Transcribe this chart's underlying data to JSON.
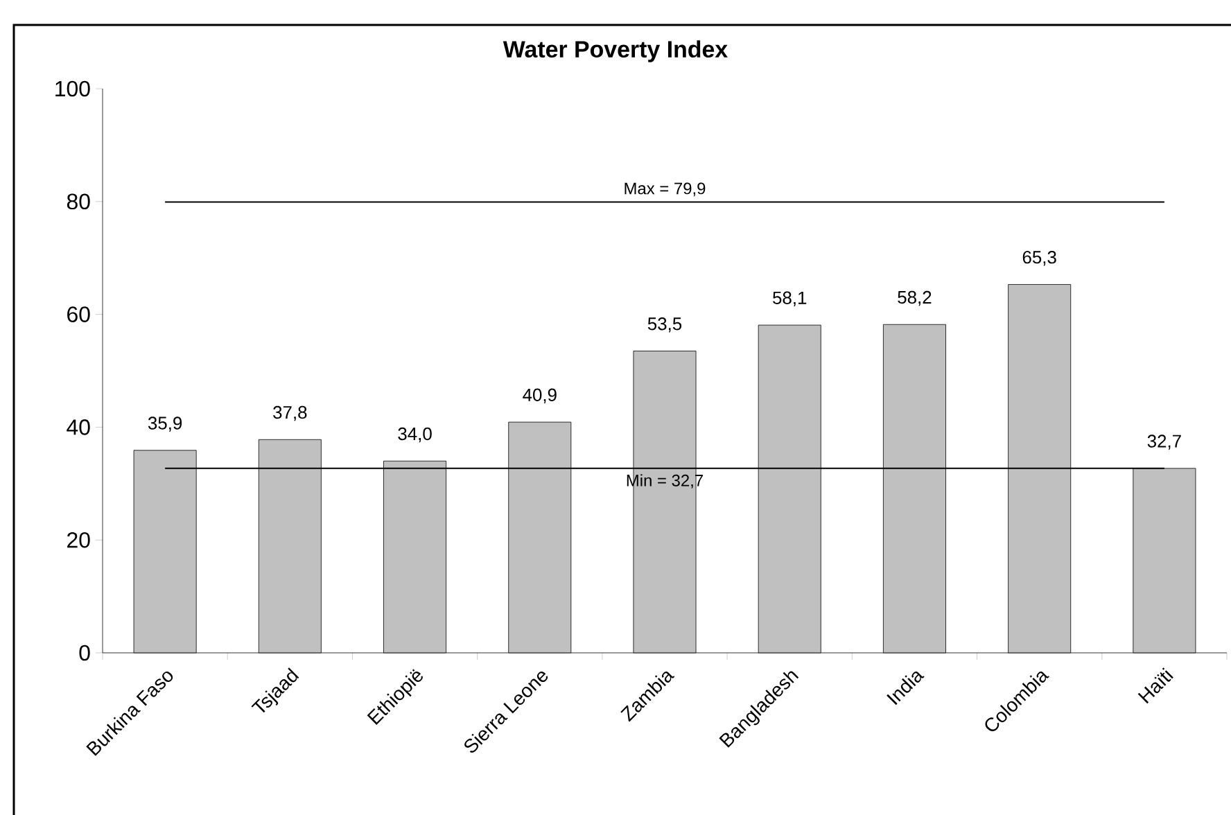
{
  "chart_data": {
    "type": "bar",
    "title": "Water Poverty Index",
    "categories": [
      "Burkina Faso",
      "Tsjaad",
      "Ethiopië",
      "Sierra Leone",
      "Zambia",
      "Bangladesh",
      "India",
      "Colombia",
      "Haïti"
    ],
    "values": [
      35.9,
      37.8,
      34.0,
      40.9,
      53.5,
      58.1,
      58.2,
      65.3,
      32.7
    ],
    "value_labels": [
      "35,9",
      "37,8",
      "34,0",
      "40,9",
      "53,5",
      "58,1",
      "58,2",
      "65,3",
      "32,7"
    ],
    "color": "#c0c0c0",
    "ylim": [
      0,
      100
    ],
    "yticks": [
      0,
      20,
      40,
      60,
      80,
      100
    ],
    "ref_lines": [
      {
        "axis": "y",
        "value": 79.9,
        "label": "Max = 79,9",
        "color": "#000000"
      },
      {
        "axis": "y",
        "value": 32.7,
        "label": "Min = 32,7",
        "color": "#000000"
      }
    ],
    "grid": false
  }
}
